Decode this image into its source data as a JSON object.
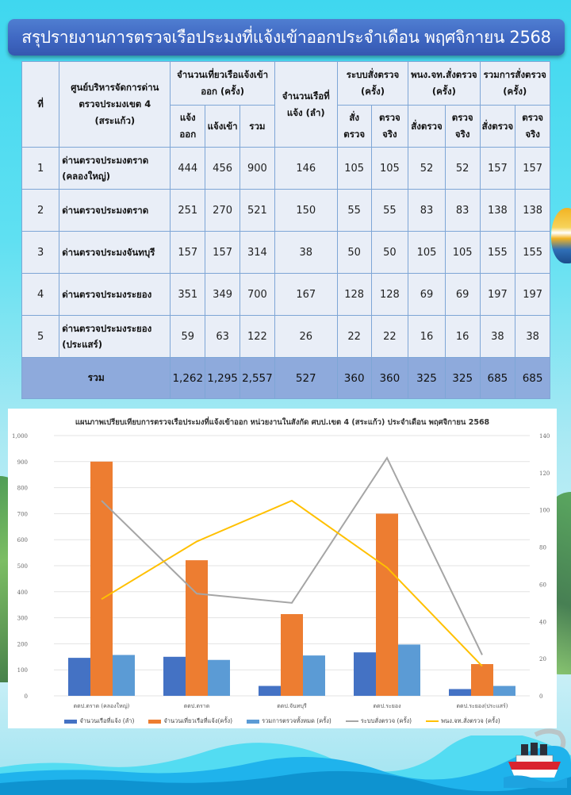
{
  "header": {
    "title": "สรุปรายงานการตรวจเรือประมงที่แจ้งเข้าออกประจำเดือน พฤศจิกายน 2568"
  },
  "table": {
    "headers": {
      "no": "ที่",
      "center": "ศูนย์บริหารจัดการด่านตรวจประมงเขต 4 (สระแก้ว)",
      "trips_group": "จำนวนเที่ยวเรือแจ้งเข้าออก (ครั้ง)",
      "trips_out": "แจ้งออก",
      "trips_in": "แจ้งเข้า",
      "trips_total": "รวม",
      "boats": "จำนวนเรือที่แจ้ง (ลำ)",
      "system_group": "ระบบสั่งตรวจ (ครั้ง)",
      "officer_group": "พนง.จท.สั่งตรวจ (ครั้ง)",
      "total_group": "รวมการสั่งตรวจ (ครั้ง)",
      "ordered": "สั่งตรวจ",
      "inspected": "ตรวจจริง"
    },
    "rows": [
      {
        "no": "1",
        "name": "ด่านตรวจประมงตราด (คลองใหญ่)",
        "out": "444",
        "in": "456",
        "total": "900",
        "boats": "146",
        "sys_order": "105",
        "sys_insp": "105",
        "off_order": "52",
        "off_insp": "52",
        "all_order": "157",
        "all_insp": "157"
      },
      {
        "no": "2",
        "name": "ด่านตรวจประมงตราด",
        "out": "251",
        "in": "270",
        "total": "521",
        "boats": "150",
        "sys_order": "55",
        "sys_insp": "55",
        "off_order": "83",
        "off_insp": "83",
        "all_order": "138",
        "all_insp": "138"
      },
      {
        "no": "3",
        "name": "ด่านตรวจประมงจันทบุรี",
        "out": "157",
        "in": "157",
        "total": "314",
        "boats": "38",
        "sys_order": "50",
        "sys_insp": "50",
        "off_order": "105",
        "off_insp": "105",
        "all_order": "155",
        "all_insp": "155"
      },
      {
        "no": "4",
        "name": "ด่านตรวจประมงระยอง",
        "out": "351",
        "in": "349",
        "total": "700",
        "boats": "167",
        "sys_order": "128",
        "sys_insp": "128",
        "off_order": "69",
        "off_insp": "69",
        "all_order": "197",
        "all_insp": "197"
      },
      {
        "no": "5",
        "name": "ด่านตรวจประมงระยอง (ประแสร์)",
        "out": "59",
        "in": "63",
        "total": "122",
        "boats": "26",
        "sys_order": "22",
        "sys_insp": "22",
        "off_order": "16",
        "off_insp": "16",
        "all_order": "38",
        "all_insp": "38"
      }
    ],
    "totals": {
      "label": "รวม",
      "out": "1,262",
      "in": "1,295",
      "total": "2,557",
      "boats": "527",
      "sys_order": "360",
      "sys_insp": "360",
      "off_order": "325",
      "off_insp": "325",
      "all_order": "685",
      "all_insp": "685"
    }
  },
  "colors": {
    "title_bg": "#3f67c2",
    "table_bg": "#e9eef7",
    "table_border": "#7ea6d6",
    "total_row_bg": "#8eaadc",
    "bar_boats": "#4472c4",
    "bar_trips": "#ed7d31",
    "bar_total_inspect": "#5b9bd5",
    "line_system": "#a5a5a5",
    "line_officer": "#ffc000"
  },
  "chart_data": {
    "type": "bar",
    "title": "แผนภาพเปรียบเทียบการตรวจเรือประมงที่แจ้งเข้าออก หน่วยงานในสังกัด ศบป.เขต 4 (สระแก้ว) ประจำเดือน พฤศจิกายน 2568",
    "categories": [
      "ตตป.ตราด (คลองใหญ่)",
      "ตตป.ตราด",
      "ตตป.จันทบุรี",
      "ตตป.ระยอง",
      "ตตป.ระยอง(ประแสร์)"
    ],
    "series": [
      {
        "name": "จำนวนเรือที่แจ้ง (ลำ)",
        "type": "bar",
        "axis": "left",
        "values": [
          146,
          150,
          38,
          167,
          26
        ]
      },
      {
        "name": "จำนวนเที่ยวเรือที่แจ้ง(ครั้ง)",
        "type": "bar",
        "axis": "left",
        "values": [
          900,
          521,
          314,
          700,
          122
        ]
      },
      {
        "name": "รวมการตรวจทั้งหมด (ครั้ง)",
        "type": "bar",
        "axis": "left",
        "values": [
          157,
          138,
          155,
          197,
          38
        ]
      },
      {
        "name": "ระบบสั่งตรวจ (ครั้ง)",
        "type": "line",
        "axis": "right",
        "values": [
          105,
          55,
          50,
          128,
          22
        ]
      },
      {
        "name": "พนง.จท.สั่งตรวจ (ครั้ง)",
        "type": "line",
        "axis": "right",
        "values": [
          52,
          83,
          105,
          69,
          16
        ]
      }
    ],
    "left_axis": {
      "ylim": [
        0,
        1000
      ],
      "ticks": [
        "0",
        "100",
        "200",
        "300",
        "400",
        "500",
        "600",
        "700",
        "800",
        "900",
        "1,000"
      ]
    },
    "right_axis": {
      "ylim": [
        0,
        140
      ],
      "ticks": [
        "0",
        "20",
        "40",
        "60",
        "80",
        "100",
        "120",
        "140"
      ]
    },
    "grid": true,
    "legend_position": "bottom",
    "xlabel": "",
    "ylabel": ""
  }
}
